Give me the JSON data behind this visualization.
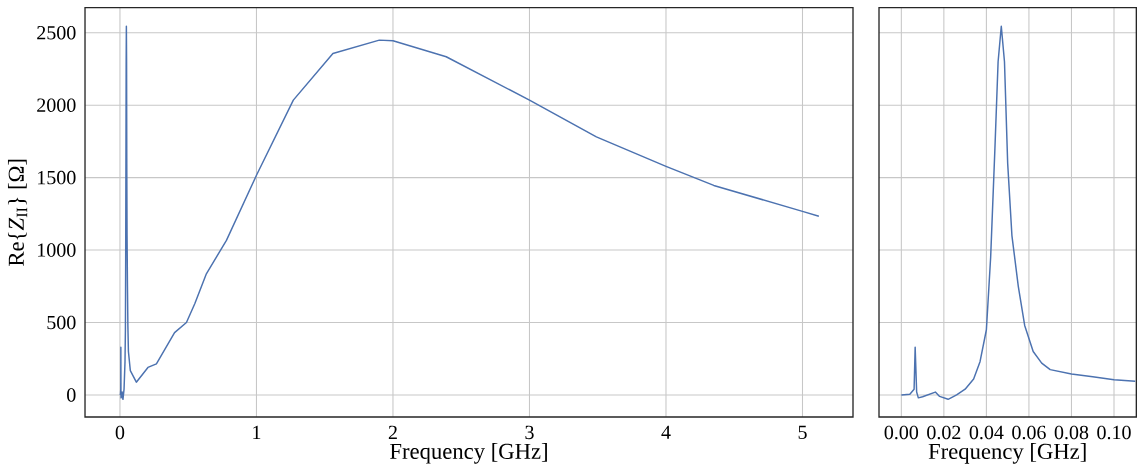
{
  "chart_data": [
    {
      "type": "line",
      "xlabel": "Frequency [GHz]",
      "ylabel": "Re{*Z*$_{II}$} [Ω]",
      "grid": true,
      "xlim": [
        -0.256,
        5.37
      ],
      "ylim": [
        -152,
        2673
      ],
      "xticks": [
        0,
        1,
        2,
        3,
        4,
        5
      ],
      "yticks": [
        0,
        500,
        1000,
        1500,
        2000,
        2500
      ],
      "series": [
        {
          "color": "#4c72b0",
          "x": [
            0.0,
            0.004,
            0.006,
            0.0065,
            0.0072,
            0.008,
            0.016,
            0.018,
            0.022,
            0.03,
            0.037,
            0.04,
            0.042,
            0.044,
            0.0455,
            0.047,
            0.0485,
            0.05,
            0.052,
            0.055,
            0.058,
            0.062,
            0.076,
            0.12,
            0.205,
            0.267,
            0.4,
            0.487,
            0.548,
            0.633,
            0.78,
            1.0,
            1.27,
            1.56,
            1.9,
            2.0,
            2.39,
            3.0,
            3.49,
            4.0,
            4.35,
            5.0,
            5.12
          ],
          "values": [
            0,
            5,
            40,
            330,
            20,
            -20,
            20,
            -10,
            -30,
            40,
            230,
            450,
            950,
            1700,
            2300,
            2545,
            2300,
            1600,
            1100,
            750,
            480,
            300,
            168,
            88,
            190,
            215,
            430,
            500,
            630,
            836,
            1067,
            1516,
            2035,
            2357,
            2449,
            2445,
            2334,
            2035,
            1781,
            1578,
            1446,
            1267,
            1233
          ]
        }
      ]
    },
    {
      "type": "line",
      "xlabel": "Frequency [GHz]",
      "grid": true,
      "tick_labels": "x",
      "xlim": [
        -0.0105,
        0.1105
      ],
      "ylim": [
        -152,
        2673
      ],
      "xticks": [
        {
          "value": 0,
          "label": "0.00"
        },
        {
          "value": 0.02,
          "label": "0.02"
        },
        {
          "value": 0.04,
          "label": "0.04"
        },
        {
          "value": 0.06,
          "label": "0.06"
        },
        {
          "value": 0.08,
          "label": "0.08"
        },
        {
          "value": 0.1,
          "label": "0.10"
        }
      ],
      "yticks": [
        0,
        500,
        1000,
        1500,
        2000,
        2500
      ],
      "series": [
        {
          "color": "#4c72b0",
          "x": [
            0.0,
            0.004,
            0.006,
            0.0065,
            0.0072,
            0.008,
            0.01,
            0.016,
            0.018,
            0.022,
            0.026,
            0.03,
            0.034,
            0.037,
            0.04,
            0.042,
            0.044,
            0.0455,
            0.047,
            0.0485,
            0.05,
            0.052,
            0.055,
            0.058,
            0.062,
            0.066,
            0.07,
            0.08,
            0.09,
            0.1,
            0.11
          ],
          "values": [
            0,
            5,
            40,
            330,
            20,
            -20,
            -12,
            20,
            -10,
            -30,
            0,
            40,
            110,
            230,
            450,
            950,
            1700,
            2300,
            2545,
            2300,
            1600,
            1100,
            750,
            480,
            300,
            220,
            175,
            145,
            125,
            105,
            95
          ]
        }
      ]
    }
  ]
}
